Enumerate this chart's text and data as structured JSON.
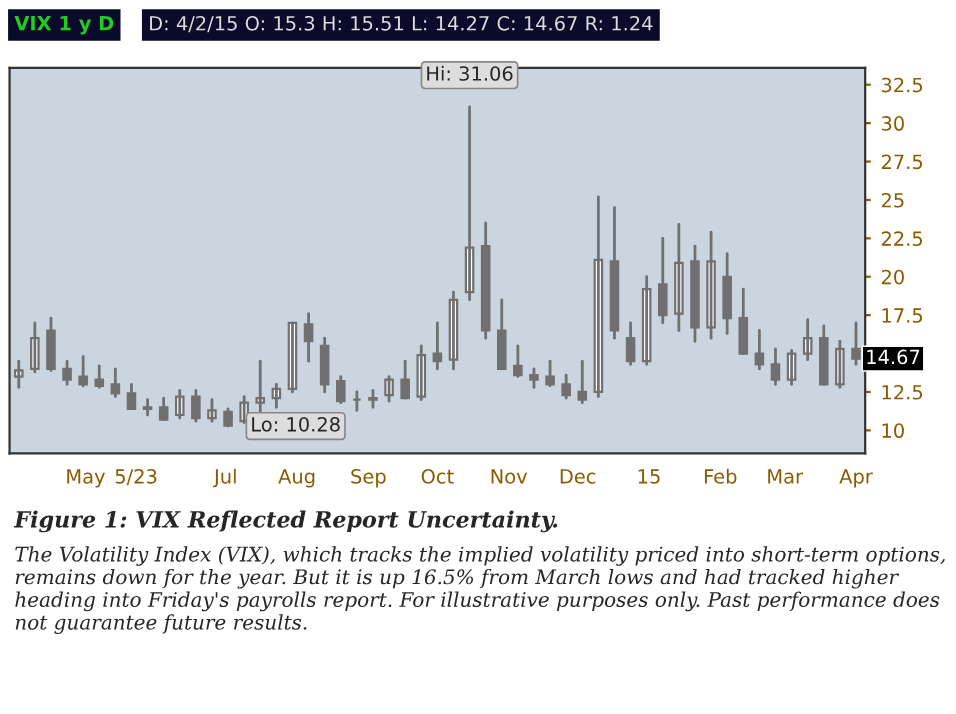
{
  "chart_data": {
    "type": "candlestick",
    "title": "Figure 1: VIX Reflected Report Uncertainty.",
    "color": "#707070",
    "x": [
      "2014-04-02",
      "2014-04-09",
      "2014-04-16",
      "2014-04-23",
      "2014-04-30",
      "2014-05-07",
      "2014-05-14",
      "2014-05-21",
      "2014-05-28",
      "2014-06-04",
      "2014-06-11",
      "2014-06-18",
      "2014-06-25",
      "2014-07-02",
      "2014-07-09",
      "2014-07-16",
      "2014-07-23",
      "2014-07-30",
      "2014-08-06",
      "2014-08-13",
      "2014-08-20",
      "2014-08-27",
      "2014-09-03",
      "2014-09-10",
      "2014-09-17",
      "2014-09-24",
      "2014-10-01",
      "2014-10-08",
      "2014-10-15",
      "2014-10-22",
      "2014-10-29",
      "2014-11-05",
      "2014-11-12",
      "2014-11-19",
      "2014-11-26",
      "2014-12-03",
      "2014-12-10",
      "2014-12-17",
      "2014-12-24",
      "2014-12-31",
      "2015-01-07",
      "2015-01-14",
      "2015-01-21",
      "2015-01-28",
      "2015-02-04",
      "2015-02-11",
      "2015-02-18",
      "2015-02-25",
      "2015-03-04",
      "2015-03-11",
      "2015-03-18",
      "2015-03-25",
      "2015-04-01"
    ],
    "ohlc": [
      [
        13.5,
        14.5,
        12.8,
        13.9
      ],
      [
        14.0,
        17.0,
        13.8,
        16.0
      ],
      [
        16.5,
        17.3,
        13.9,
        14.0
      ],
      [
        14.0,
        14.5,
        13.0,
        13.3
      ],
      [
        13.5,
        14.8,
        12.9,
        13.0
      ],
      [
        13.3,
        14.2,
        12.8,
        12.9
      ],
      [
        13.0,
        14.0,
        12.2,
        12.4
      ],
      [
        12.4,
        13.0,
        11.4,
        11.4
      ],
      [
        11.5,
        12.0,
        11.0,
        11.4
      ],
      [
        11.5,
        12.1,
        10.7,
        10.7
      ],
      [
        11.0,
        12.6,
        10.8,
        12.2
      ],
      [
        12.2,
        12.6,
        10.6,
        10.8
      ],
      [
        10.8,
        12.0,
        10.6,
        11.3
      ],
      [
        11.2,
        11.4,
        10.28,
        10.3
      ],
      [
        10.6,
        12.2,
        10.5,
        11.8
      ],
      [
        11.8,
        14.5,
        11.0,
        12.1
      ],
      [
        12.1,
        13.0,
        11.5,
        12.7
      ],
      [
        12.7,
        17.0,
        12.5,
        17.0
      ],
      [
        16.9,
        17.6,
        14.5,
        15.8
      ],
      [
        15.5,
        16.0,
        12.5,
        13.0
      ],
      [
        13.2,
        13.5,
        11.8,
        11.9
      ],
      [
        12.0,
        12.5,
        11.3,
        12.0
      ],
      [
        12.0,
        12.6,
        11.5,
        12.1
      ],
      [
        12.3,
        13.5,
        11.9,
        13.3
      ],
      [
        13.3,
        14.5,
        12.1,
        12.1
      ],
      [
        12.2,
        15.5,
        12.0,
        14.9
      ],
      [
        15.0,
        17.0,
        14.0,
        14.5
      ],
      [
        14.6,
        19.0,
        14.0,
        18.5
      ],
      [
        19.0,
        31.06,
        18.5,
        21.9
      ],
      [
        22.0,
        23.5,
        16.0,
        16.5
      ],
      [
        16.5,
        18.5,
        14.0,
        14.0
      ],
      [
        14.2,
        15.5,
        13.5,
        13.6
      ],
      [
        13.6,
        14.0,
        12.8,
        13.3
      ],
      [
        13.5,
        14.5,
        12.9,
        13.0
      ],
      [
        13.0,
        13.6,
        12.1,
        12.3
      ],
      [
        12.5,
        14.5,
        11.8,
        12.0
      ],
      [
        12.5,
        25.2,
        12.2,
        21.1
      ],
      [
        21.0,
        24.5,
        16.0,
        16.5
      ],
      [
        16.0,
        17.0,
        14.3,
        14.5
      ],
      [
        14.5,
        20.0,
        14.3,
        19.2
      ],
      [
        19.5,
        22.5,
        17.0,
        17.5
      ],
      [
        17.6,
        23.4,
        16.5,
        20.9
      ],
      [
        21.0,
        22.0,
        15.8,
        16.7
      ],
      [
        16.7,
        22.9,
        16.0,
        21.0
      ],
      [
        20.0,
        21.5,
        16.3,
        17.3
      ],
      [
        17.3,
        19.2,
        15.0,
        15.0
      ],
      [
        15.0,
        16.5,
        14.0,
        14.3
      ],
      [
        14.3,
        15.3,
        13.0,
        13.3
      ],
      [
        13.3,
        15.2,
        13.0,
        15.0
      ],
      [
        15.0,
        17.2,
        14.6,
        16.0
      ],
      [
        16.0,
        16.8,
        13.0,
        13.0
      ],
      [
        13.0,
        15.8,
        12.8,
        15.3
      ],
      [
        15.3,
        17.0,
        14.3,
        14.67
      ]
    ],
    "xlim": [
      "2014-03-29",
      "2015-04-05"
    ],
    "xticks": [
      {
        "value": "2014-05-01",
        "label": "May"
      },
      {
        "value": "2014-05-23",
        "label": "5/23"
      },
      {
        "value": "2014-07-01",
        "label": "Jul"
      },
      {
        "value": "2014-08-01",
        "label": "Aug"
      },
      {
        "value": "2014-09-01",
        "label": "Sep"
      },
      {
        "value": "2014-10-01",
        "label": "Oct"
      },
      {
        "value": "2014-11-01",
        "label": "Nov"
      },
      {
        "value": "2014-12-01",
        "label": "Dec"
      },
      {
        "value": "2015-01-01",
        "label": "15"
      },
      {
        "value": "2015-02-01",
        "label": "Feb"
      },
      {
        "value": "2015-03-01",
        "label": "Mar"
      },
      {
        "value": "2015-04-01",
        "label": "Apr"
      }
    ],
    "ylim": [
      8.5,
      33.6
    ],
    "yticks": [
      10,
      12.5,
      17.5,
      20,
      22.5,
      25,
      27.5,
      30,
      32.5
    ],
    "annotations": [
      "VIX 1 y D",
      "D: 4/2/15 O: 15.3 H: 15.51 L: 14.27 C: 14.67 R: 1.24",
      {
        "text": "Hi: 31.06",
        "x": "2014-10-15",
        "y": 31.06
      },
      {
        "text": "Lo: 10.28",
        "x": "2014-07-02",
        "y": 10.28
      },
      {
        "text": "14.67",
        "x": "2015-04-01",
        "y": 14.67
      },
      "The Volatility Index (VIX), which tracks the implied volatility priced into short-term options, remains down for the year. But it is up 16.5% from March lows and had tracked higher heading into Friday's payrolls report. For illustrative purposes only. Past performance does not guarantee future results."
    ]
  }
}
